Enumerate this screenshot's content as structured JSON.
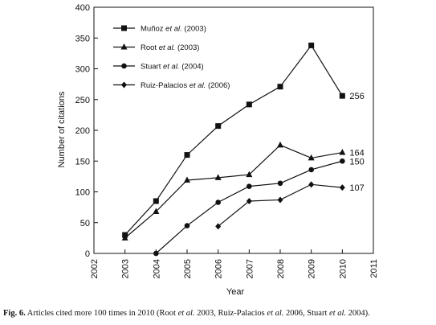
{
  "chart_data": {
    "type": "line",
    "xlabel": "Year",
    "ylabel": "Number of citations",
    "xlim": [
      2002,
      2011
    ],
    "ylim": [
      0,
      400
    ],
    "x_ticks": [
      "2002",
      "2003",
      "2004",
      "2005",
      "2006",
      "2007",
      "2008",
      "2009",
      "2010",
      "2011"
    ],
    "y_ticks": [
      "0",
      "50",
      "100",
      "150",
      "200",
      "250",
      "300",
      "350",
      "400"
    ],
    "legend_position": "top-left",
    "grid": false,
    "series": [
      {
        "name_plain": "Muñoz ",
        "name_italic": "et al.",
        "name_suffix": " (2003)",
        "marker": "square",
        "x": [
          2003,
          2004,
          2005,
          2006,
          2007,
          2008,
          2009,
          2010
        ],
        "values": [
          30,
          85,
          160,
          207,
          242,
          271,
          338,
          256
        ],
        "end_label": "256"
      },
      {
        "name_plain": "Root ",
        "name_italic": "et al.",
        "name_suffix": " (2003)",
        "marker": "triangle",
        "x": [
          2003,
          2004,
          2005,
          2006,
          2007,
          2008,
          2009,
          2010
        ],
        "values": [
          25,
          68,
          119,
          123,
          128,
          176,
          155,
          164
        ],
        "end_label": "164"
      },
      {
        "name_plain": "Stuart ",
        "name_italic": "et al.",
        "name_suffix": " (2004)",
        "marker": "circle",
        "x": [
          2004,
          2005,
          2006,
          2007,
          2008,
          2009,
          2010
        ],
        "values": [
          0,
          45,
          83,
          109,
          114,
          136,
          150
        ],
        "end_label": "150"
      },
      {
        "name_plain": "Ruiz-Palacios ",
        "name_italic": "et al.",
        "name_suffix": " (2006)",
        "marker": "diamond",
        "x": [
          2006,
          2007,
          2008,
          2009,
          2010
        ],
        "values": [
          44,
          85,
          87,
          112,
          107
        ],
        "end_label": "107"
      }
    ]
  },
  "caption": {
    "fig_label": "Fig. 6.",
    "t1": " Articles cited more 100 times in 2010 (Root ",
    "i1": "et al.",
    "t2": " 2003, Ruiz-Palacios ",
    "i2": "et al.",
    "t3": " 2006, Stuart ",
    "i3": "et al.",
    "t4": " 2004)."
  }
}
